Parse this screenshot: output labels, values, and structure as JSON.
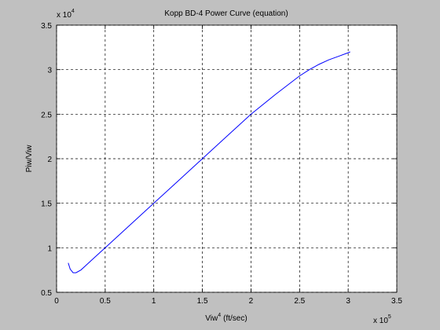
{
  "chart_data": {
    "type": "line",
    "title": "Kopp BD-4 Power Curve (equation)",
    "xlabel": "Viw",
    "xlabel_sup": "4",
    "xlabel_unit": "(ft/sec)",
    "ylabel": "Piw/Viw",
    "x_multiplier": {
      "base": "x 10",
      "power": "5"
    },
    "y_multiplier": {
      "base": "x 10",
      "power": "4"
    },
    "x": [
      0.12,
      0.14,
      0.17,
      0.2,
      0.25,
      0.3,
      0.4,
      0.5,
      0.75,
      1.0,
      1.25,
      1.5,
      1.75,
      2.0,
      2.25,
      2.5,
      2.6,
      2.7,
      2.8,
      2.9,
      3.0,
      3.02
    ],
    "series": [
      {
        "name": "Piw/Viw",
        "color": "#0000ff",
        "values": [
          0.83,
          0.76,
          0.72,
          0.72,
          0.75,
          0.8,
          0.9,
          1.0,
          1.25,
          1.5,
          1.75,
          2.0,
          2.25,
          2.5,
          2.72,
          2.93,
          3.0,
          3.06,
          3.11,
          3.15,
          3.19,
          3.2
        ]
      }
    ],
    "xlim": [
      0,
      3.5
    ],
    "xticks": [
      0,
      0.5,
      1,
      1.5,
      2,
      2.5,
      3,
      3.5
    ],
    "ylim": [
      0.5,
      3.5
    ],
    "yticks": [
      0.5,
      1,
      1.5,
      2,
      2.5,
      3,
      3.5
    ],
    "grid": true
  }
}
